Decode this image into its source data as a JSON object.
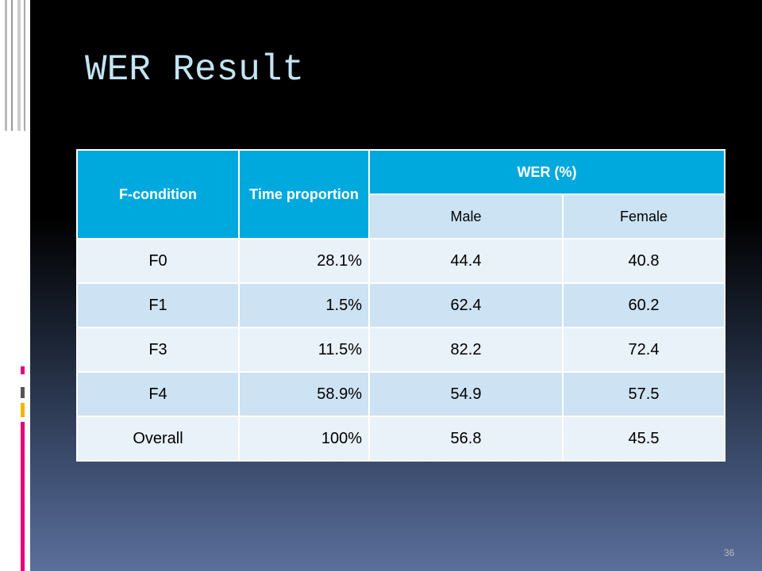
{
  "title": "WER Result",
  "table": {
    "header": [
      "F-condition",
      "Time proportion",
      "WER (%)"
    ],
    "subheader": [
      "Male",
      "Female"
    ],
    "rows": [
      [
        "F0",
        "28.1%",
        "44.4",
        "40.8"
      ],
      [
        "F1",
        "1.5%",
        "62.4",
        "60.2"
      ],
      [
        "F3",
        "11.5%",
        "82.2",
        "72.4"
      ],
      [
        "F4",
        "58.9%",
        "54.9",
        "57.5"
      ],
      [
        "Overall",
        "100%",
        "56.8",
        "45.5"
      ]
    ]
  },
  "page_number": "36"
}
